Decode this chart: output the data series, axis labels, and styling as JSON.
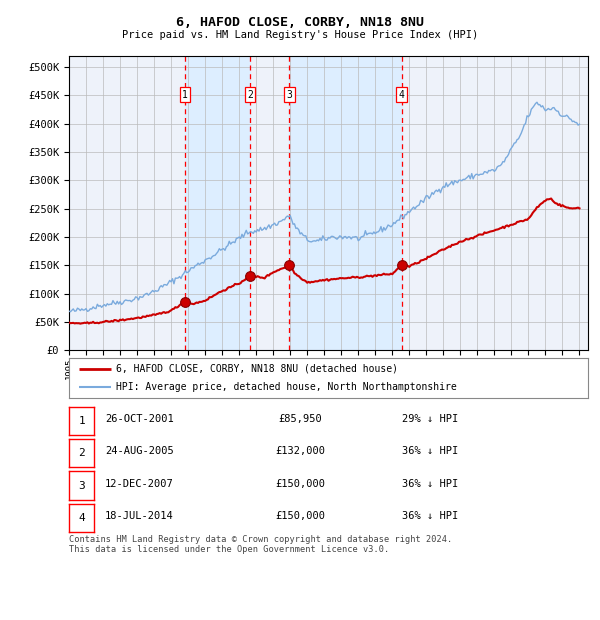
{
  "title": "6, HAFOD CLOSE, CORBY, NN18 8NU",
  "subtitle": "Price paid vs. HM Land Registry's House Price Index (HPI)",
  "transactions": [
    {
      "num": 1,
      "date_str": "26-OCT-2001",
      "date_x": 2001.82,
      "price": 85950,
      "pct": "29% ↓ HPI"
    },
    {
      "num": 2,
      "date_str": "24-AUG-2005",
      "date_x": 2005.64,
      "price": 132000,
      "pct": "36% ↓ HPI"
    },
    {
      "num": 3,
      "date_str": "12-DEC-2007",
      "date_x": 2007.95,
      "price": 150000,
      "pct": "36% ↓ HPI"
    },
    {
      "num": 4,
      "date_str": "18-JUL-2014",
      "date_x": 2014.54,
      "price": 150000,
      "pct": "36% ↓ HPI"
    }
  ],
  "hpi_color": "#7aaadd",
  "price_color": "#cc0000",
  "shade_color": "#ddeeff",
  "grid_color": "#bbbbbb",
  "bg_color": "#ffffff",
  "plot_bg_color": "#eef2fa",
  "ylabel_vals": [
    0,
    50000,
    100000,
    150000,
    200000,
    250000,
    300000,
    350000,
    400000,
    450000,
    500000
  ],
  "ylabel_labels": [
    "£0",
    "£50K",
    "£100K",
    "£150K",
    "£200K",
    "£250K",
    "£300K",
    "£350K",
    "£400K",
    "£450K",
    "£500K"
  ],
  "xmin": 1995.0,
  "xmax": 2025.5,
  "ymin": 0,
  "ymax": 520000,
  "legend1": "6, HAFOD CLOSE, CORBY, NN18 8NU (detached house)",
  "legend2": "HPI: Average price, detached house, North Northamptonshire",
  "footer": "Contains HM Land Registry data © Crown copyright and database right 2024.\nThis data is licensed under the Open Government Licence v3.0.",
  "hpi_keypoints": [
    [
      1995.0,
      68000
    ],
    [
      1996.0,
      73000
    ],
    [
      1997.0,
      80000
    ],
    [
      1998.5,
      88000
    ],
    [
      1999.5,
      97000
    ],
    [
      2000.5,
      112000
    ],
    [
      2001.5,
      130000
    ],
    [
      2002.5,
      150000
    ],
    [
      2003.5,
      168000
    ],
    [
      2004.5,
      188000
    ],
    [
      2005.5,
      208000
    ],
    [
      2006.5,
      215000
    ],
    [
      2007.5,
      228000
    ],
    [
      2007.9,
      238000
    ],
    [
      2008.5,
      210000
    ],
    [
      2009.0,
      195000
    ],
    [
      2009.5,
      192000
    ],
    [
      2010.5,
      200000
    ],
    [
      2011.5,
      200000
    ],
    [
      2012.0,
      197000
    ],
    [
      2013.0,
      208000
    ],
    [
      2014.0,
      222000
    ],
    [
      2015.0,
      245000
    ],
    [
      2016.0,
      268000
    ],
    [
      2017.0,
      290000
    ],
    [
      2018.0,
      300000
    ],
    [
      2019.0,
      310000
    ],
    [
      2020.0,
      318000
    ],
    [
      2020.5,
      330000
    ],
    [
      2021.0,
      355000
    ],
    [
      2021.5,
      378000
    ],
    [
      2022.0,
      415000
    ],
    [
      2022.5,
      438000
    ],
    [
      2023.0,
      425000
    ],
    [
      2023.5,
      428000
    ],
    [
      2024.0,
      415000
    ],
    [
      2024.5,
      408000
    ],
    [
      2025.0,
      398000
    ]
  ],
  "price_keypoints": [
    [
      1995.0,
      48000
    ],
    [
      1996.0,
      47500
    ],
    [
      1997.0,
      50000
    ],
    [
      1998.0,
      53000
    ],
    [
      1999.0,
      57000
    ],
    [
      2000.0,
      62000
    ],
    [
      2001.0,
      70000
    ],
    [
      2001.82,
      85950
    ],
    [
      2002.3,
      82000
    ],
    [
      2003.0,
      88000
    ],
    [
      2004.0,
      105000
    ],
    [
      2005.0,
      118000
    ],
    [
      2005.64,
      132000
    ],
    [
      2006.0,
      130000
    ],
    [
      2006.5,
      128000
    ],
    [
      2007.0,
      138000
    ],
    [
      2007.95,
      150000
    ],
    [
      2008.3,
      135000
    ],
    [
      2009.0,
      120000
    ],
    [
      2010.0,
      124000
    ],
    [
      2011.0,
      127000
    ],
    [
      2012.0,
      129000
    ],
    [
      2013.0,
      132000
    ],
    [
      2014.0,
      135000
    ],
    [
      2014.54,
      150000
    ],
    [
      2015.0,
      148000
    ],
    [
      2016.0,
      162000
    ],
    [
      2017.0,
      178000
    ],
    [
      2018.0,
      192000
    ],
    [
      2019.0,
      202000
    ],
    [
      2020.0,
      212000
    ],
    [
      2021.0,
      222000
    ],
    [
      2022.0,
      232000
    ],
    [
      2022.5,
      252000
    ],
    [
      2023.0,
      265000
    ],
    [
      2023.3,
      268000
    ],
    [
      2023.7,
      258000
    ],
    [
      2024.0,
      255000
    ],
    [
      2024.5,
      250000
    ],
    [
      2025.0,
      252000
    ]
  ]
}
